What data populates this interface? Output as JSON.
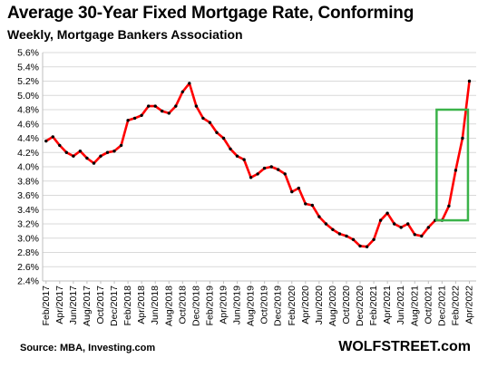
{
  "header": {
    "title": "Average 30-Year Fixed Mortgage Rate, Conforming",
    "subtitle": "Weekly, Mortgage Bankers Association"
  },
  "footer": {
    "source": "Source: MBA,  Investing.com",
    "brand": "WOLFSTREET.com"
  },
  "chart_data": {
    "type": "line",
    "title": "Average 30-Year Fixed Mortgage Rate, Conforming",
    "subtitle": "Weekly, Mortgage Bankers Association",
    "ylim": [
      2.4,
      5.6
    ],
    "yticks": [
      "2.4%",
      "2.6%",
      "2.8%",
      "3.0%",
      "3.2%",
      "3.4%",
      "3.6%",
      "3.8%",
      "4.0%",
      "4.2%",
      "4.4%",
      "4.6%",
      "4.8%",
      "5.0%",
      "5.2%",
      "5.4%",
      "5.6%"
    ],
    "xticks": [
      "Feb/2017",
      "Apr/2017",
      "Jun/2017",
      "Aug/2017",
      "Oct/2017",
      "Dec/2017",
      "Feb/2018",
      "Apr/2018",
      "Jun/2018",
      "Aug/2018",
      "Oct/2018",
      "Dec/2018",
      "Feb/2019",
      "Apr/2019",
      "Jun/2019",
      "Aug/2019",
      "Oct/2019",
      "Dec/2019",
      "Feb/2020",
      "Apr/2020",
      "Jun/2020",
      "Aug/2020",
      "Oct/2020",
      "Dec/2020",
      "Feb/2021",
      "Apr/2021",
      "Jun/2021",
      "Aug/2021",
      "Oct/2021",
      "Dec/2021",
      "Feb/2022",
      "Apr/2022"
    ],
    "series": [
      {
        "name": "",
        "color": "#ff0000",
        "marker_color": "#000000",
        "x": [
          "2017-02",
          "2017-03",
          "2017-04",
          "2017-05",
          "2017-06",
          "2017-07",
          "2017-08",
          "2017-09",
          "2017-10",
          "2017-11",
          "2017-12",
          "2018-01",
          "2018-02",
          "2018-03",
          "2018-04",
          "2018-05",
          "2018-06",
          "2018-07",
          "2018-08",
          "2018-09",
          "2018-10",
          "2018-11",
          "2018-12",
          "2019-01",
          "2019-02",
          "2019-03",
          "2019-04",
          "2019-05",
          "2019-06",
          "2019-07",
          "2019-08",
          "2019-09",
          "2019-10",
          "2019-11",
          "2019-12",
          "2020-01",
          "2020-02",
          "2020-03",
          "2020-04",
          "2020-05",
          "2020-06",
          "2020-07",
          "2020-08",
          "2020-09",
          "2020-10",
          "2020-11",
          "2020-12",
          "2021-01",
          "2021-02",
          "2021-03",
          "2021-04",
          "2021-05",
          "2021-06",
          "2021-07",
          "2021-08",
          "2021-09",
          "2021-10",
          "2021-11",
          "2021-12",
          "2022-01",
          "2022-02",
          "2022-03",
          "2022-04"
        ],
        "y": [
          4.36,
          4.42,
          4.3,
          4.2,
          4.15,
          4.22,
          4.12,
          4.05,
          4.15,
          4.2,
          4.22,
          4.3,
          4.65,
          4.68,
          4.72,
          4.85,
          4.85,
          4.78,
          4.75,
          4.85,
          5.05,
          5.17,
          4.85,
          4.68,
          4.62,
          4.48,
          4.4,
          4.25,
          4.15,
          4.1,
          3.85,
          3.9,
          3.98,
          4.0,
          3.96,
          3.9,
          3.65,
          3.7,
          3.48,
          3.46,
          3.3,
          3.2,
          3.12,
          3.06,
          3.03,
          2.98,
          2.89,
          2.88,
          2.98,
          3.25,
          3.35,
          3.2,
          3.15,
          3.2,
          3.05,
          3.03,
          3.15,
          3.25,
          3.25,
          3.45,
          3.95,
          4.4,
          5.2
        ]
      }
    ],
    "annotations": [
      {
        "type": "rectangle",
        "color": "#3bb34a",
        "x_range": [
          "2021-12",
          "2022-03"
        ],
        "y_range": [
          3.25,
          4.8
        ]
      }
    ],
    "grid": true,
    "legend": "none"
  }
}
